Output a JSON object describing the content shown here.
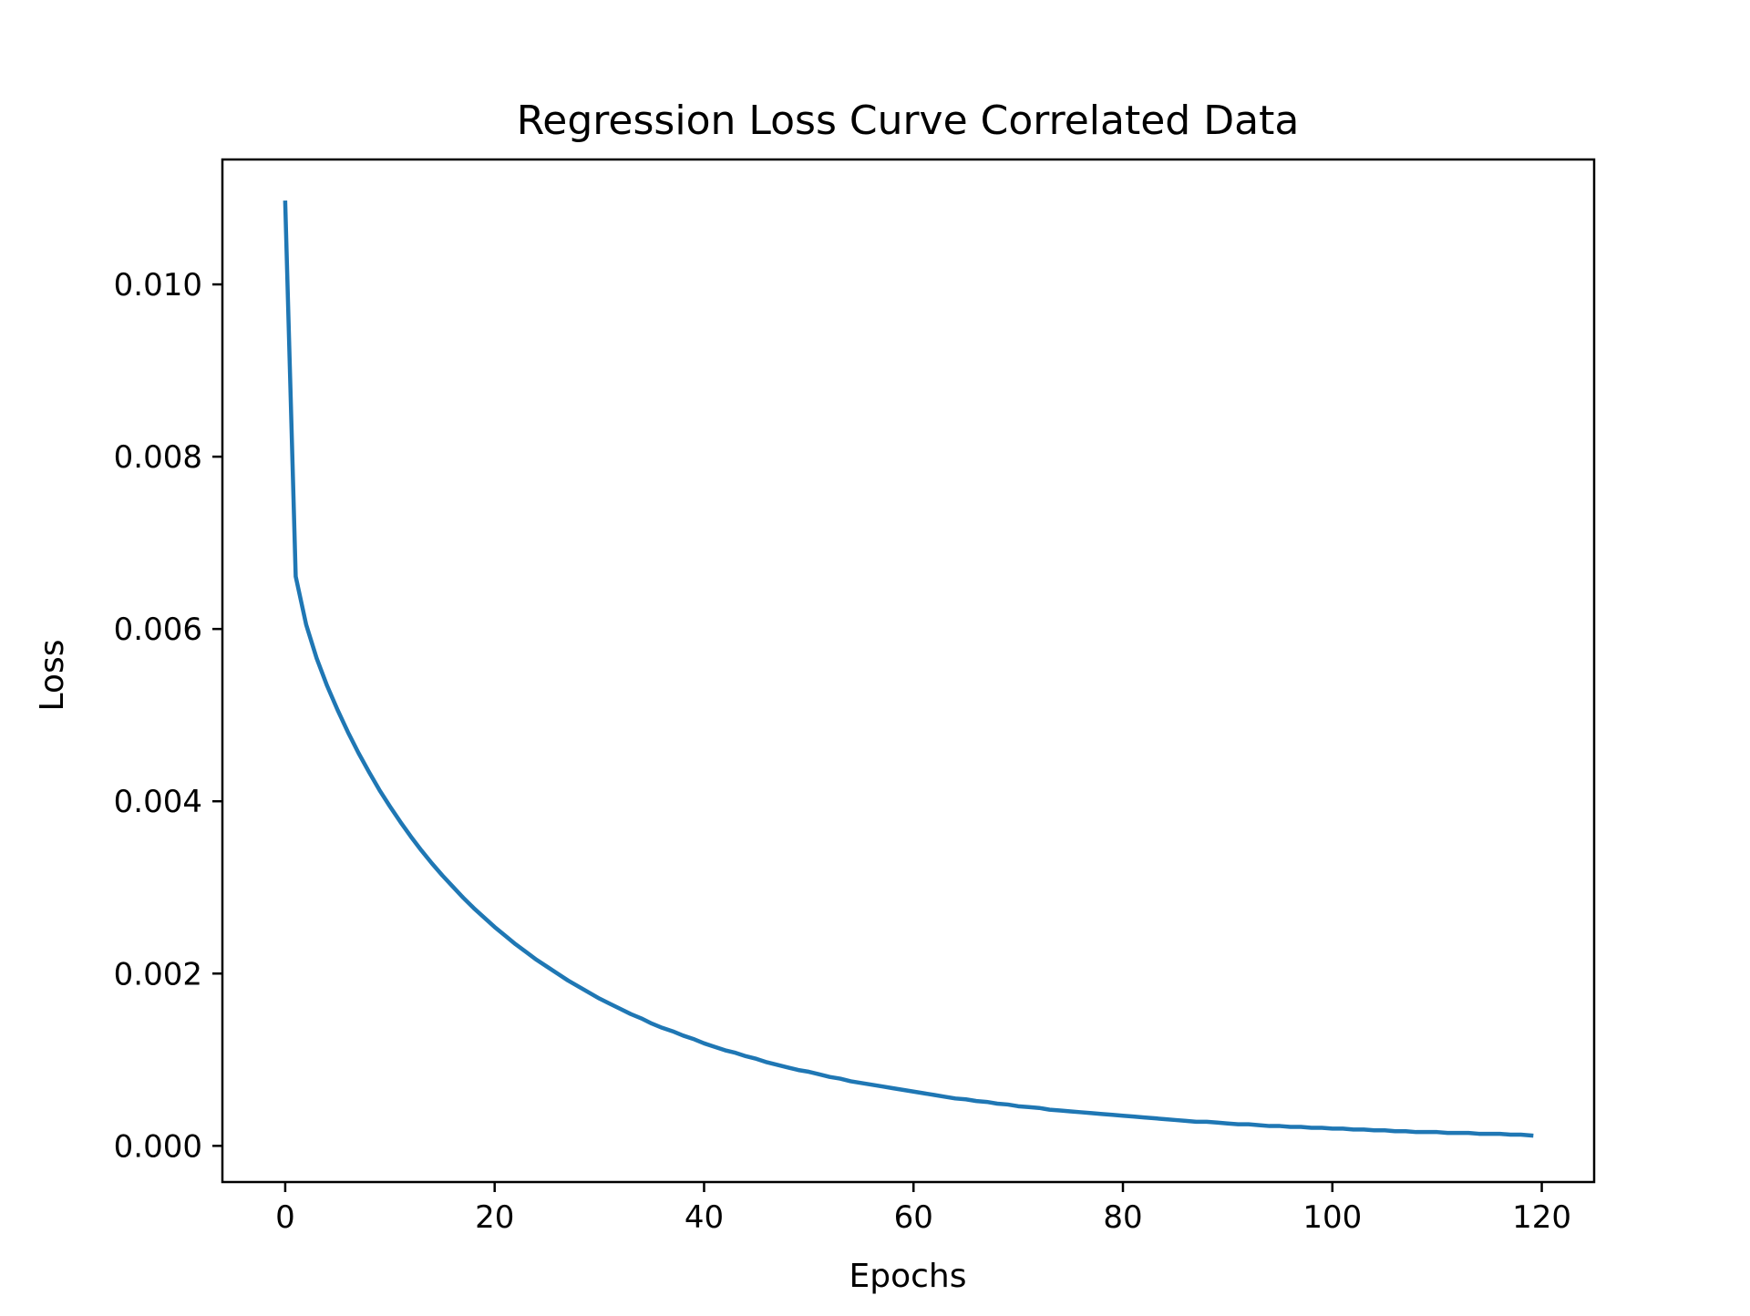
{
  "chart_data": {
    "type": "line",
    "title": "Regression Loss Curve Correlated Data",
    "xlabel": "Epochs",
    "ylabel": "Loss",
    "xlim": [
      -6,
      125
    ],
    "ylim": [
      -0.00042,
      0.01145
    ],
    "xticks": [
      0,
      20,
      40,
      60,
      80,
      100,
      120
    ],
    "xtick_labels": [
      "0",
      "20",
      "40",
      "60",
      "80",
      "100",
      "120"
    ],
    "yticks": [
      0.0,
      0.002,
      0.004,
      0.006,
      0.008,
      0.01
    ],
    "ytick_labels": [
      "0.000",
      "0.002",
      "0.004",
      "0.006",
      "0.008",
      "0.010"
    ],
    "grid": false,
    "legend": "none",
    "series": [
      {
        "color": "#1f77b4",
        "x": [
          0,
          1,
          2,
          3,
          4,
          5,
          6,
          7,
          8,
          9,
          10,
          11,
          12,
          13,
          14,
          15,
          16,
          17,
          18,
          19,
          20,
          21,
          22,
          23,
          24,
          25,
          26,
          27,
          28,
          29,
          30,
          31,
          32,
          33,
          34,
          35,
          36,
          37,
          38,
          39,
          40,
          41,
          42,
          43,
          44,
          45,
          46,
          47,
          48,
          49,
          50,
          51,
          52,
          53,
          54,
          55,
          56,
          57,
          58,
          59,
          60,
          61,
          62,
          63,
          64,
          65,
          66,
          67,
          68,
          69,
          70,
          71,
          72,
          73,
          74,
          75,
          76,
          77,
          78,
          79,
          80,
          81,
          82,
          83,
          84,
          85,
          86,
          87,
          88,
          89,
          90,
          91,
          92,
          93,
          94,
          95,
          96,
          97,
          98,
          99,
          100,
          101,
          102,
          103,
          104,
          105,
          106,
          107,
          108,
          109,
          110,
          111,
          112,
          113,
          114,
          115,
          116,
          117,
          118,
          119
        ],
        "y": [
          0.01095,
          0.00661,
          0.00605,
          0.00566,
          0.00534,
          0.00506,
          0.0048,
          0.00456,
          0.00434,
          0.00413,
          0.00394,
          0.00376,
          0.00359,
          0.00343,
          0.00328,
          0.00314,
          0.00301,
          0.00288,
          0.00276,
          0.00265,
          0.00254,
          0.00244,
          0.00234,
          0.00225,
          0.00216,
          0.00208,
          0.002,
          0.00192,
          0.00185,
          0.00178,
          0.00171,
          0.00165,
          0.00159,
          0.00153,
          0.00148,
          0.00142,
          0.00137,
          0.00133,
          0.00128,
          0.00124,
          0.00119,
          0.00115,
          0.00111,
          0.00108,
          0.00104,
          0.00101,
          0.00097,
          0.00094,
          0.00091,
          0.00088,
          0.00086,
          0.00083,
          0.0008,
          0.00078,
          0.00075,
          0.00073,
          0.00071,
          0.00069,
          0.00067,
          0.00065,
          0.00063,
          0.00061,
          0.00059,
          0.00057,
          0.00055,
          0.00054,
          0.00052,
          0.00051,
          0.00049,
          0.00048,
          0.00046,
          0.00045,
          0.00044,
          0.00042,
          0.00041,
          0.0004,
          0.00039,
          0.00038,
          0.00037,
          0.00036,
          0.00035,
          0.00034,
          0.00033,
          0.00032,
          0.00031,
          0.0003,
          0.00029,
          0.00028,
          0.00028,
          0.00027,
          0.00026,
          0.00025,
          0.00025,
          0.00024,
          0.00023,
          0.00023,
          0.00022,
          0.00022,
          0.00021,
          0.00021,
          0.0002,
          0.0002,
          0.00019,
          0.00019,
          0.00018,
          0.00018,
          0.00017,
          0.00017,
          0.00016,
          0.00016,
          0.00016,
          0.00015,
          0.00015,
          0.00015,
          0.00014,
          0.00014,
          0.00014,
          0.00013,
          0.00013,
          0.00012
        ]
      }
    ]
  }
}
